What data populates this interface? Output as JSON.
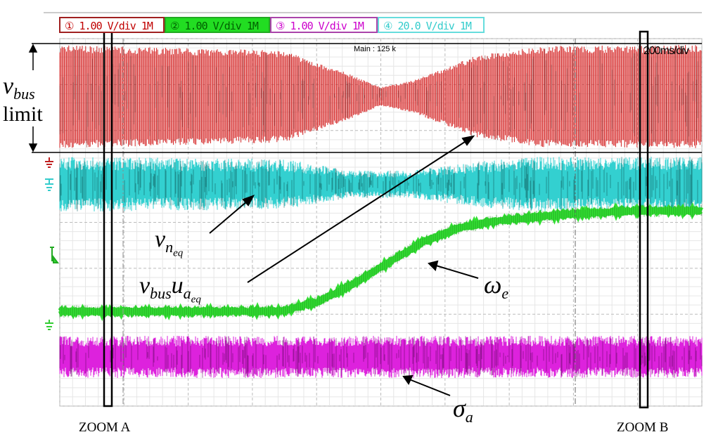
{
  "header": {
    "channels": [
      {
        "label": "① 1.00 V/div 1M",
        "color": "#c00000",
        "bg": "#ffffff"
      },
      {
        "label": "② 1.00 V/div 1M",
        "color": "#006000",
        "bg": "#22dd22"
      },
      {
        "label": "③ 1.00 V/div 1M",
        "color": "#cc00cc",
        "bg": "#ffffff"
      },
      {
        "label": "④ 20.0 V/div 1M",
        "color": "#33cccc",
        "bg": "#ffffff"
      }
    ],
    "memory": "Main : 125 k",
    "timebase": "200ms/div"
  },
  "annotations": {
    "vbus": "v",
    "vbus_sub": "bus",
    "limit": "limit",
    "vneq": "v",
    "vneq_sub": "n",
    "vneq_subsub": "eq",
    "vbusu": "v",
    "vbusu_sub": "bus",
    "vbusu_u": "u",
    "vbusu_usub": "a",
    "vbusu_usubsub": "eq",
    "omega": "ω",
    "omega_sub": "e",
    "sigma": "σ",
    "sigma_sub": "a",
    "zoom_a": "ZOOM A",
    "zoom_b": "ZOOM B"
  },
  "chart_data": {
    "type": "line",
    "title": "",
    "xlabel": "",
    "ylabel": "",
    "x_unit": "ms",
    "xlim": [
      0,
      2000
    ],
    "ylim_divisions": [
      0,
      8
    ],
    "grid": true,
    "series": [
      {
        "channel": 1,
        "color": "#d42020",
        "kind": "oscillating envelope",
        "center_div": 6.74,
        "x": [
          0,
          700,
          900,
          1000,
          1100,
          1300,
          1500,
          2000
        ],
        "half_amplitude_div": [
          1.13,
          1.0,
          0.5,
          0.2,
          0.35,
          0.9,
          1.1,
          1.13
        ]
      },
      {
        "channel": 4,
        "color": "#33d0d0",
        "kind": "noise band",
        "center_div": 4.83,
        "x": [
          0,
          700,
          900,
          1100,
          1300,
          1500,
          2000
        ],
        "half_amplitude_div": [
          0.6,
          0.55,
          0.3,
          0.3,
          0.5,
          0.6,
          0.6
        ]
      },
      {
        "channel": 2,
        "color": "#33e033",
        "kind": "trace",
        "x": [
          0,
          690,
          800,
          909,
          1019,
          1128,
          1238,
          1347,
          1566,
          1785,
          2000
        ],
        "y_div": [
          2.06,
          2.06,
          2.26,
          2.64,
          3.1,
          3.56,
          3.87,
          4.02,
          4.17,
          4.25,
          4.25
        ]
      },
      {
        "channel": 3,
        "color": "#dd22dd",
        "kind": "noise band",
        "center_div": 1.07,
        "x": [
          0,
          2000
        ],
        "half_amplitude_div": [
          0.46,
          0.46
        ]
      }
    ]
  }
}
